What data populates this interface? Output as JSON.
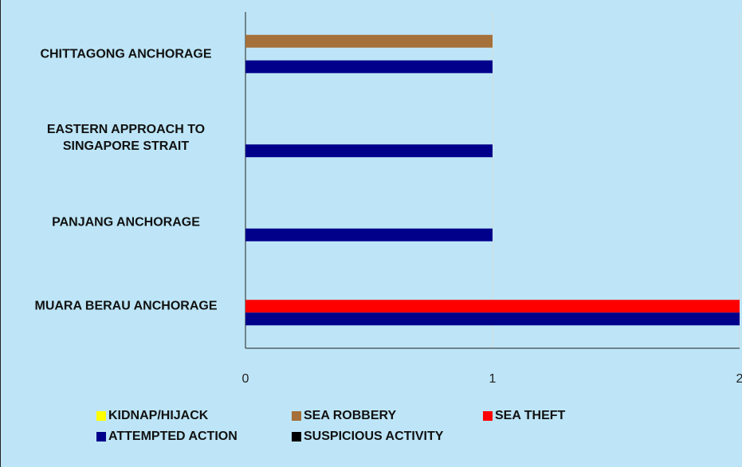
{
  "chart_data": {
    "type": "bar",
    "orientation": "horizontal",
    "categories": [
      "CHITTAGONG ANCHORAGE",
      "EASTERN APPROACH TO SINGAPORE STRAIT",
      "PANJANG ANCHORAGE",
      "MUARA BERAU ANCHORAGE"
    ],
    "series": [
      {
        "name": "KIDNAP/HIJACK",
        "color": "#ffff00",
        "values": [
          0,
          0,
          0,
          0
        ]
      },
      {
        "name": "SEA ROBBERY",
        "color": "#a5703a",
        "values": [
          1,
          0,
          0,
          0
        ]
      },
      {
        "name": "SEA THEFT",
        "color": "#ff0000",
        "values": [
          0,
          0,
          0,
          2
        ]
      },
      {
        "name": "ATTEMPTED ACTION",
        "color": "#00008b",
        "values": [
          1,
          1,
          1,
          2
        ]
      },
      {
        "name": "SUSPICIOUS ACTIVITY",
        "color": "#000000",
        "values": [
          0,
          0,
          0,
          0
        ]
      }
    ],
    "xlim": [
      0,
      2
    ],
    "xticks": [
      0,
      1,
      2
    ],
    "grid": true
  }
}
